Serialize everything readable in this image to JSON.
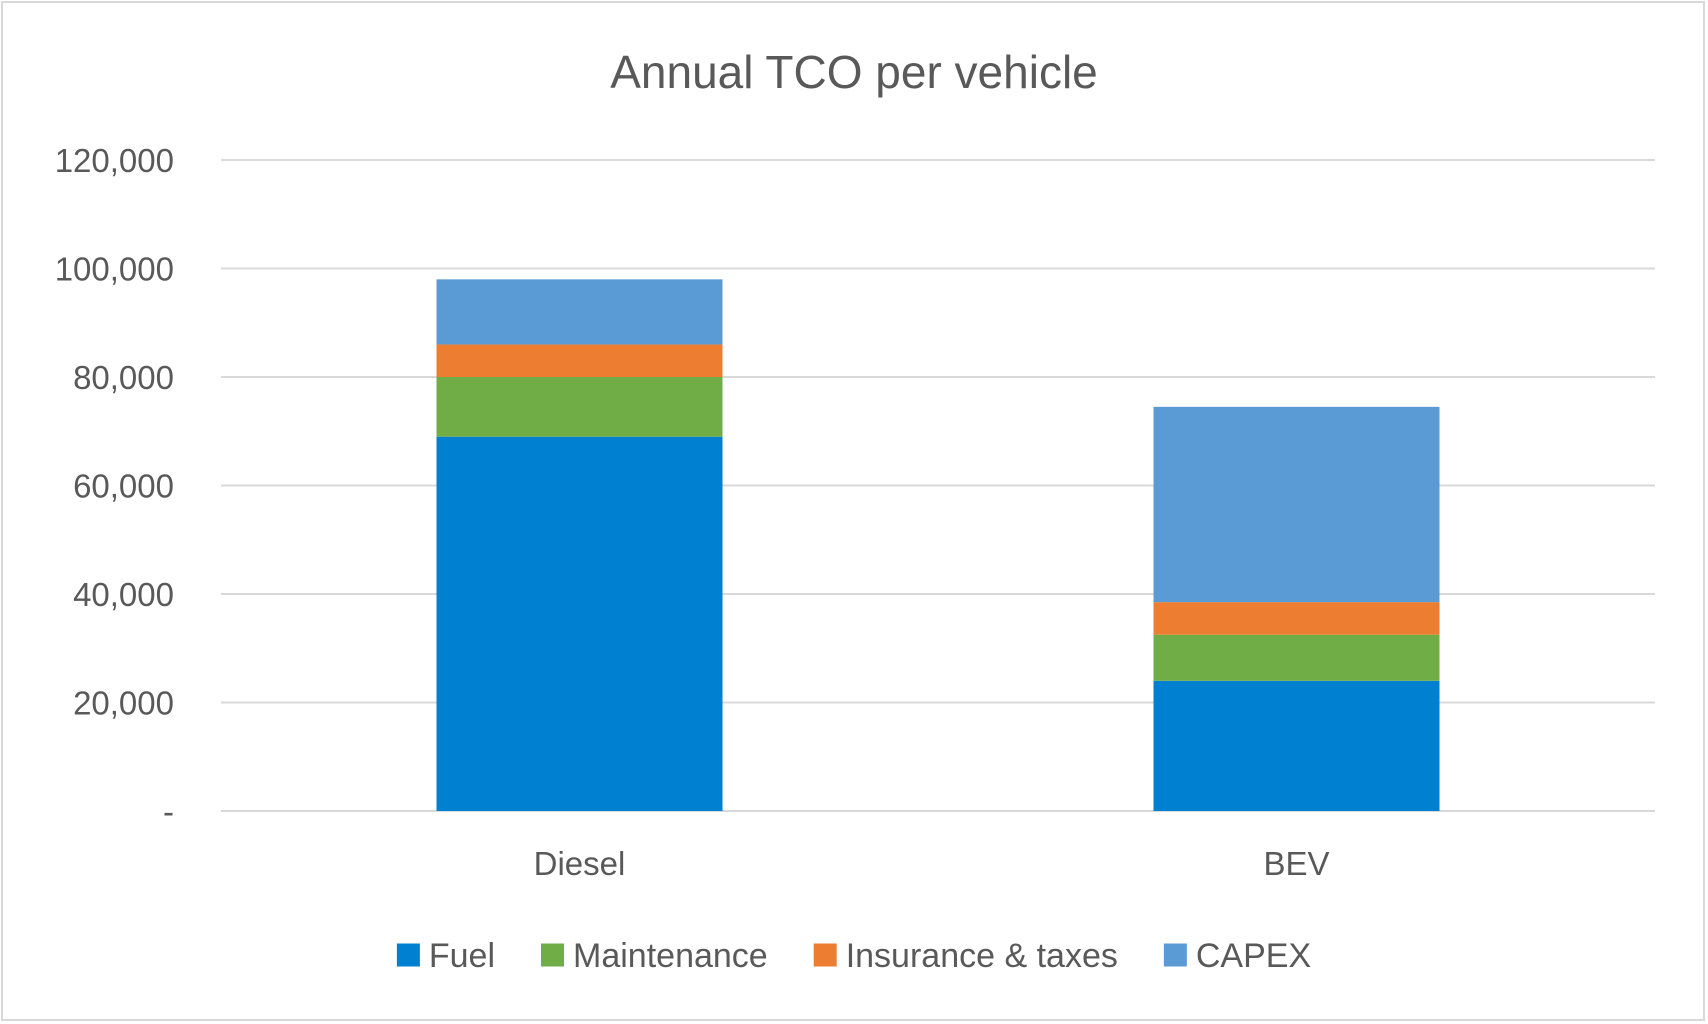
{
  "chart_data": {
    "type": "bar",
    "stacked": true,
    "title": "Annual TCO per vehicle",
    "xlabel": "",
    "ylabel": "",
    "categories": [
      "Diesel",
      "BEV"
    ],
    "ylim": [
      0,
      120000
    ],
    "yticks": [
      0,
      20000,
      40000,
      60000,
      80000,
      100000,
      120000
    ],
    "ytick_labels": [
      "-",
      "20,000",
      "40,000",
      "60,000",
      "80,000",
      "100,000",
      "120,000"
    ],
    "grid": true,
    "legend_position": "bottom",
    "series": [
      {
        "name": "Fuel",
        "color": "#0080D0",
        "values": [
          69000,
          24000
        ]
      },
      {
        "name": "Maintenance",
        "color": "#70AD47",
        "values": [
          11000,
          8500
        ]
      },
      {
        "name": "Insurance & taxes",
        "color": "#ED7D31",
        "values": [
          6000,
          6000
        ]
      },
      {
        "name": "CAPEX",
        "color": "#5B9BD5",
        "values": [
          12000,
          36000
        ]
      }
    ]
  }
}
